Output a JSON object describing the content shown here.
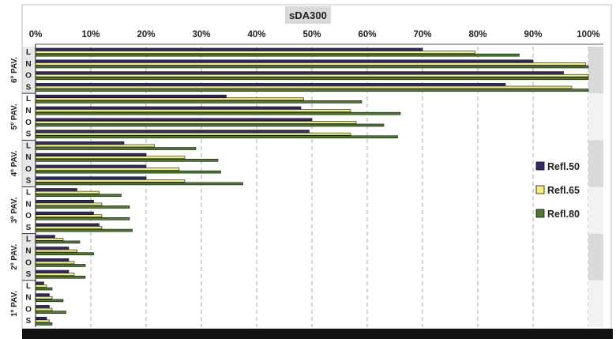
{
  "chart_data": {
    "type": "bar",
    "orientation": "horizontal",
    "title": "sDA300",
    "xlim": [
      0,
      100
    ],
    "x_ticks": [
      "0%",
      "10%",
      "20%",
      "30%",
      "40%",
      "50%",
      "60%",
      "70%",
      "80%",
      "90%",
      "100%"
    ],
    "grid": "vertical-dashed",
    "legend_position": "right",
    "groups": [
      {
        "label": "6º PAV.",
        "categories": [
          "L",
          "N",
          "O",
          "S"
        ]
      },
      {
        "label": "5º PAV.",
        "categories": [
          "L",
          "N",
          "O",
          "S"
        ]
      },
      {
        "label": "4º PAV.",
        "categories": [
          "L",
          "N",
          "O",
          "S"
        ]
      },
      {
        "label": "3º PAV.",
        "categories": [
          "L",
          "N",
          "O",
          "S"
        ]
      },
      {
        "label": "2º PAV.",
        "categories": [
          "L",
          "N",
          "O",
          "S"
        ]
      },
      {
        "label": "1º PAV.",
        "categories": [
          "L",
          "N",
          "O",
          "S"
        ]
      }
    ],
    "series": [
      {
        "name": "Refl.50",
        "color": "#2e2a6e",
        "values": [
          70,
          90,
          95.5,
          85,
          34.5,
          48,
          50,
          49.5,
          16,
          20,
          20,
          20,
          7.5,
          10.5,
          10.5,
          11.5,
          3.5,
          6,
          6,
          6,
          1.5,
          2.5,
          2.5,
          2
        ]
      },
      {
        "name": "Refl.65",
        "color": "#f3f07a",
        "values": [
          79.5,
          99.5,
          100,
          97,
          48.5,
          57,
          58,
          57,
          21.5,
          27,
          26,
          27,
          11.5,
          12,
          12,
          12,
          5,
          7.5,
          7,
          7,
          2,
          3,
          3,
          2.5
        ]
      },
      {
        "name": "Refl.80",
        "color": "#4b7a2c",
        "values": [
          87.5,
          100,
          100,
          100,
          59,
          66,
          63,
          65.5,
          29,
          33,
          33.5,
          37.5,
          15.5,
          17,
          17,
          17.5,
          8,
          10.5,
          9,
          9,
          3,
          5,
          5.5,
          3
        ]
      }
    ]
  }
}
